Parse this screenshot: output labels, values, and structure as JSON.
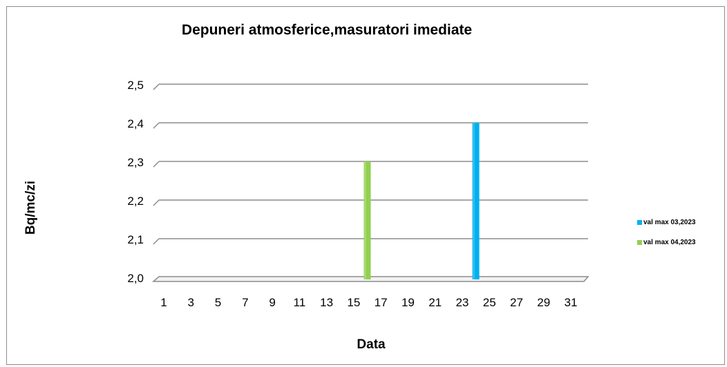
{
  "chart_data": {
    "type": "bar",
    "title": "Depuneri atmosferice,masuratori imediate",
    "xlabel": "Data",
    "ylabel": "Bq/mc/zi",
    "x_tick_labels": [
      "1",
      "3",
      "5",
      "7",
      "9",
      "11",
      "13",
      "15",
      "17",
      "19",
      "21",
      "23",
      "25",
      "27",
      "29",
      "31"
    ],
    "y_tick_labels": [
      "2,0",
      "2,1",
      "2,2",
      "2,3",
      "2,4",
      "2,5"
    ],
    "ylim": [
      2.0,
      2.5
    ],
    "y_ticks": [
      2.0,
      2.1,
      2.2,
      2.3,
      2.4,
      2.5
    ],
    "x_range": [
      1,
      31
    ],
    "grid": true,
    "legend_position": "right",
    "series": [
      {
        "name": "val max 03,2023",
        "color": "#00b0f0",
        "points": [
          {
            "x": 24,
            "y": 2.4
          }
        ]
      },
      {
        "name": "val max 04,2023",
        "color": "#92d050",
        "points": [
          {
            "x": 16,
            "y": 2.3
          }
        ]
      }
    ]
  }
}
